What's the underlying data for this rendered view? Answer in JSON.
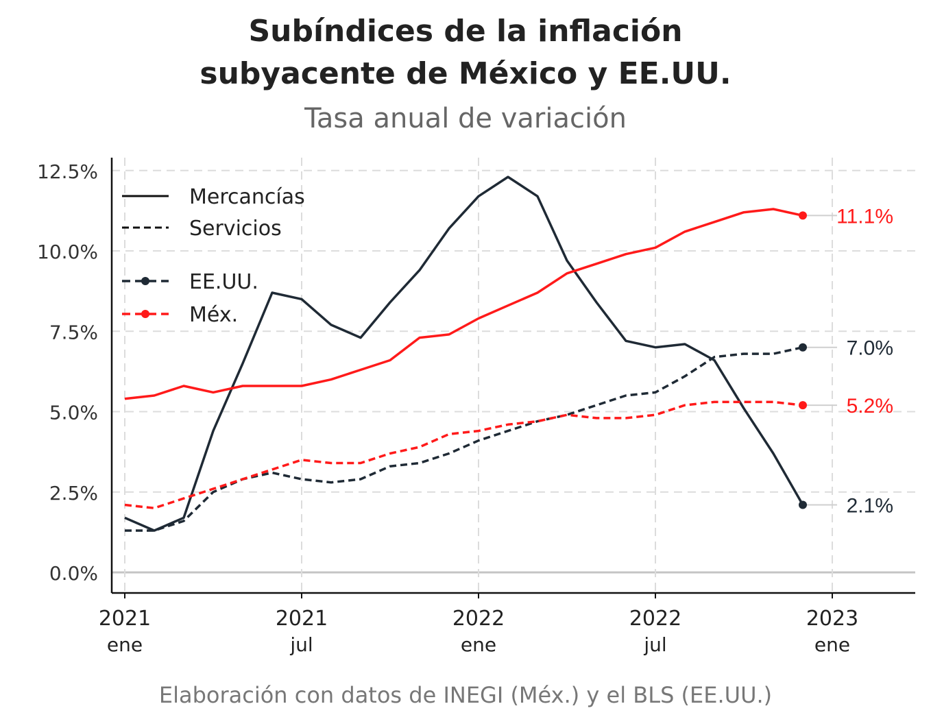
{
  "chart_data": {
    "type": "line",
    "title_line1": "Subíndices de la inflación",
    "title_line2": "subyacente de México y EE.UU.",
    "subtitle": "Tasa anual de variación",
    "caption": "Elaboración con datos de INEGI (Méx.) y el BLS (EE.UU.)",
    "ylim": [
      0,
      12.5
    ],
    "yticks": [
      "0.0%",
      "2.5%",
      "5.0%",
      "7.5%",
      "10.0%",
      "12.5%"
    ],
    "ytick_values": [
      0,
      2.5,
      5,
      7.5,
      10,
      12.5
    ],
    "xticks": [
      {
        "year": "2021",
        "month": "ene",
        "index": 0
      },
      {
        "year": "2021",
        "month": "jul",
        "index": 6
      },
      {
        "year": "2022",
        "month": "ene",
        "index": 12
      },
      {
        "year": "2022",
        "month": "jul",
        "index": 18
      },
      {
        "year": "2023",
        "month": "ene",
        "index": 24
      }
    ],
    "x_months": [
      "2021-01",
      "2021-02",
      "2021-03",
      "2021-04",
      "2021-05",
      "2021-06",
      "2021-07",
      "2021-08",
      "2021-09",
      "2021-10",
      "2021-11",
      "2021-12",
      "2022-01",
      "2022-02",
      "2022-03",
      "2022-04",
      "2022-05",
      "2022-06",
      "2022-07",
      "2022-08",
      "2022-09",
      "2022-10",
      "2022-11",
      "2022-12"
    ],
    "grid": true,
    "legend_position": "top-left",
    "legend": {
      "type_entries": [
        {
          "label": "Mercancías",
          "dash": "solid"
        },
        {
          "label": "Servicios",
          "dash": "dashed"
        }
      ],
      "country_entries": [
        {
          "label": "EE.UU.",
          "color": "#1f2a35"
        },
        {
          "label": "Méx.",
          "color": "#ff1a1a"
        }
      ]
    },
    "series": [
      {
        "country": "EE.UU.",
        "kind": "Mercancías",
        "color": "#1f2a35",
        "dash": "solid",
        "values": [
          1.7,
          1.3,
          1.7,
          4.4,
          6.5,
          8.7,
          8.5,
          7.7,
          7.3,
          8.4,
          9.4,
          10.7,
          11.7,
          12.3,
          11.7,
          9.7,
          8.4,
          7.2,
          7.0,
          7.1,
          6.6,
          5.1,
          3.7,
          2.1
        ],
        "end_label": "2.1%"
      },
      {
        "country": "EE.UU.",
        "kind": "Servicios",
        "color": "#1f2a35",
        "dash": "dashed",
        "values": [
          1.3,
          1.3,
          1.6,
          2.5,
          2.9,
          3.1,
          2.9,
          2.8,
          2.9,
          3.3,
          3.4,
          3.7,
          4.1,
          4.4,
          4.7,
          4.9,
          5.2,
          5.5,
          5.6,
          6.1,
          6.7,
          6.8,
          6.8,
          7.0
        ],
        "end_label": "7.0%"
      },
      {
        "country": "Méx.",
        "kind": "Mercancías",
        "color": "#ff1a1a",
        "dash": "solid",
        "values": [
          5.4,
          5.5,
          5.8,
          5.6,
          5.8,
          5.8,
          5.8,
          6.0,
          6.3,
          6.6,
          7.3,
          7.4,
          7.9,
          8.3,
          8.7,
          9.3,
          9.6,
          9.9,
          10.1,
          10.6,
          10.9,
          11.2,
          11.3,
          11.1
        ],
        "end_label": "11.1%"
      },
      {
        "country": "Méx.",
        "kind": "Servicios",
        "color": "#ff1a1a",
        "dash": "dashed",
        "values": [
          2.1,
          2.0,
          2.3,
          2.6,
          2.9,
          3.2,
          3.5,
          3.4,
          3.4,
          3.7,
          3.9,
          4.3,
          4.4,
          4.6,
          4.7,
          4.9,
          4.8,
          4.8,
          4.9,
          5.2,
          5.3,
          5.3,
          5.3,
          5.2
        ],
        "end_label": "5.2%"
      }
    ]
  }
}
